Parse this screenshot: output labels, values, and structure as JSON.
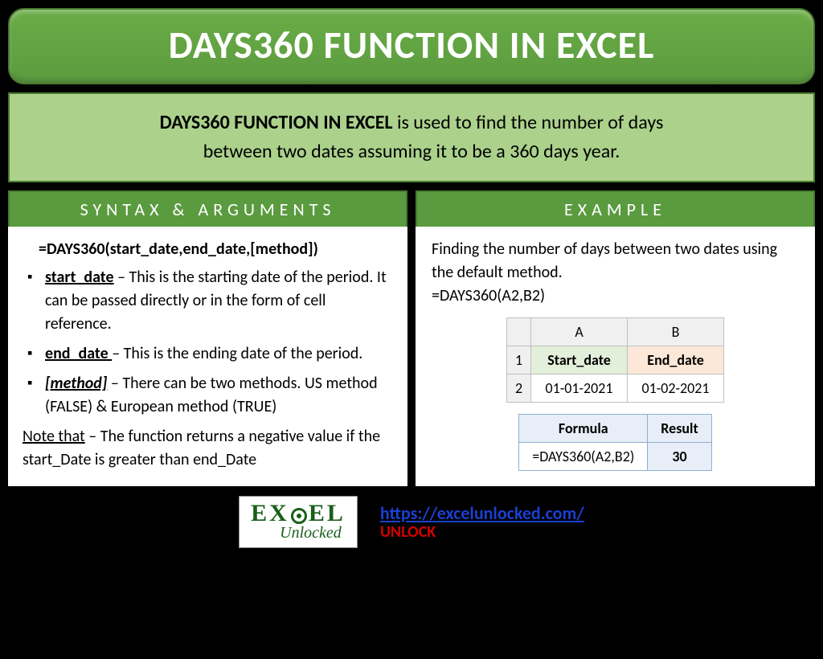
{
  "title": "DAYS360 FUNCTION IN EXCEL",
  "intro": {
    "bold": "DAYS360 FUNCTION IN EXCEL",
    "rest1": " is used to find the number of days",
    "rest2": "between two dates assuming it to be a 360 days year."
  },
  "syntax": {
    "header": "SYNTAX & ARGUMENTS",
    "formula": "=DAYS360(start_date,end_date,[method])",
    "args": [
      {
        "name": "start_date",
        "desc": " – This is the starting date of the period. It can be passed directly or in the form of cell reference.",
        "italic": false
      },
      {
        "name": "end_date ",
        "desc": "– This is the ending date of the period.",
        "italic": false
      },
      {
        "name": "[method]",
        "desc": " – There can be two methods. US method (FALSE) & European method (TRUE)",
        "italic": true
      }
    ],
    "note_label": "Note that",
    "note_rest": " – The function returns a negative value if the start_Date is greater than end_Date"
  },
  "example": {
    "header": "EXAMPLE",
    "lead1": "Finding the number of days between two dates using the default method.",
    "lead2": "=DAYS360(A2,B2)",
    "grid": {
      "colA": "A",
      "colB": "B",
      "row1": "1",
      "row2": "2",
      "h1": "Start_date",
      "h2": "End_date",
      "v1": "01-01-2021",
      "v2": "01-02-2021"
    },
    "result": {
      "cFormula": "Formula",
      "cResult": "Result",
      "f": "=DAYS360(A2,B2)",
      "r": "30"
    }
  },
  "footer": {
    "logo_top_left": "EX",
    "logo_top_right": "EL",
    "logo_sub": "Unlocked",
    "url": "https://excelunlocked.com/",
    "unlock": "UNLOCK"
  },
  "colors": {
    "green_header": "#5b9b3f",
    "green_light": "#abd18b",
    "green_border": "#4a7a2f",
    "link_blue": "#1a3fd1",
    "red": "#d40000"
  }
}
